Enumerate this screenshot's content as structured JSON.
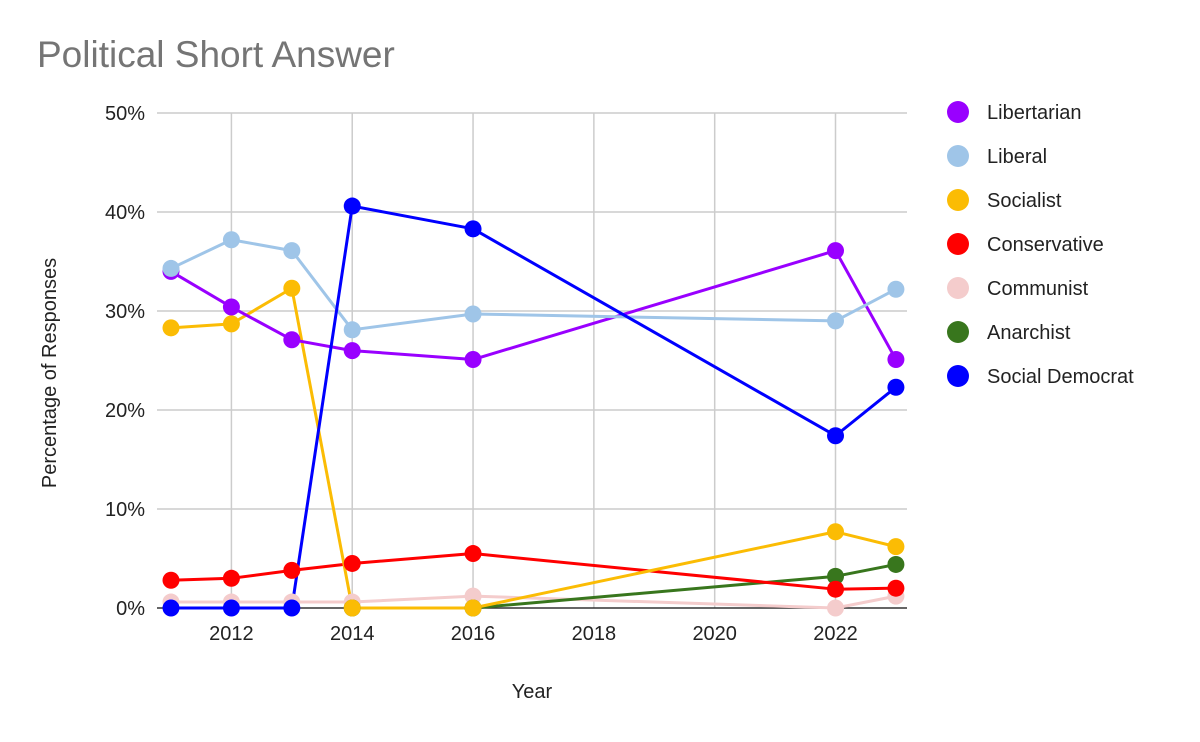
{
  "chart_data": {
    "type": "line",
    "title": "Political Short Answer",
    "xlabel": "Year",
    "ylabel": "Percentage of Responses",
    "xlim": [
      2011,
      2023.2
    ],
    "ylim": [
      0,
      50
    ],
    "xticks": [
      2012,
      2014,
      2016,
      2018,
      2020,
      2022
    ],
    "yticks": [
      0,
      10,
      20,
      30,
      40,
      50
    ],
    "ytick_labels": [
      "0%",
      "10%",
      "20%",
      "30%",
      "40%",
      "50%"
    ],
    "grid": true,
    "legend_position": "right",
    "series": [
      {
        "name": "Libertarian",
        "color": "#9900ff",
        "points": [
          [
            2011,
            34.0
          ],
          [
            2012,
            30.4
          ],
          [
            2013,
            27.1
          ],
          [
            2014,
            26.0
          ],
          [
            2016,
            25.1
          ],
          [
            2022,
            36.1
          ],
          [
            2023,
            25.1
          ]
        ]
      },
      {
        "name": "Liberal",
        "color": "#9fc5e8",
        "points": [
          [
            2011,
            34.3
          ],
          [
            2012,
            37.2
          ],
          [
            2013,
            36.1
          ],
          [
            2014,
            28.1
          ],
          [
            2016,
            29.7
          ],
          [
            2022,
            29.0
          ],
          [
            2023,
            32.2
          ]
        ]
      },
      {
        "name": "Socialist",
        "color": "#fbbc04",
        "points": [
          [
            2011,
            28.3
          ],
          [
            2012,
            28.7
          ],
          [
            2013,
            32.3
          ],
          [
            2014,
            0.0
          ],
          [
            2016,
            0.0
          ],
          [
            2022,
            7.7
          ],
          [
            2023,
            6.2
          ]
        ]
      },
      {
        "name": "Conservative",
        "color": "#ff0000",
        "points": [
          [
            2011,
            2.8
          ],
          [
            2012,
            3.0
          ],
          [
            2013,
            3.8
          ],
          [
            2014,
            4.5
          ],
          [
            2016,
            5.5
          ],
          [
            2022,
            1.9
          ],
          [
            2023,
            2.0
          ]
        ]
      },
      {
        "name": "Communist",
        "color": "#f4cccc",
        "points": [
          [
            2011,
            0.6
          ],
          [
            2012,
            0.6
          ],
          [
            2013,
            0.6
          ],
          [
            2014,
            0.6
          ],
          [
            2016,
            1.2
          ],
          [
            2022,
            0.0
          ],
          [
            2023,
            1.2
          ]
        ]
      },
      {
        "name": "Anarchist",
        "color": "#38761d",
        "points": [
          [
            2014,
            0.0
          ],
          [
            2016,
            0.0
          ],
          [
            2022,
            3.2
          ],
          [
            2023,
            4.4
          ]
        ]
      },
      {
        "name": "Social Democrat",
        "color": "#0000ff",
        "points": [
          [
            2011,
            0.0
          ],
          [
            2012,
            0.0
          ],
          [
            2013,
            0.0
          ],
          [
            2014,
            40.6
          ],
          [
            2016,
            38.3
          ],
          [
            2022,
            17.4
          ],
          [
            2023,
            22.3
          ]
        ]
      }
    ]
  }
}
